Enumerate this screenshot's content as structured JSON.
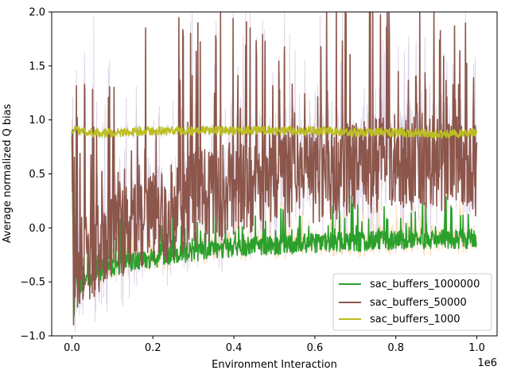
{
  "chart_data": {
    "type": "line",
    "title": "",
    "xlabel": "Environment Interaction",
    "ylabel": "Average normalized Q bias",
    "x_multiplier_label": "1e6",
    "xlim": [
      -50000,
      1050000
    ],
    "ylim": [
      -1.0,
      2.0
    ],
    "xticks": [
      0,
      200000,
      400000,
      600000,
      800000,
      1000000
    ],
    "xtick_labels": [
      "0.0",
      "0.2",
      "0.4",
      "0.6",
      "0.8",
      "1.0"
    ],
    "yticks": [
      -1.0,
      -0.5,
      0.0,
      0.5,
      1.0,
      1.5,
      2.0
    ],
    "ytick_labels": [
      "−1.0",
      "−0.5",
      "0.0",
      "0.5",
      "1.0",
      "1.5",
      "2.0"
    ],
    "grid": false,
    "legend_position": "lower-right",
    "series": [
      {
        "name": "sac_buffers_1000000",
        "color": "#2ca02c",
        "band_color": "#ffbb78",
        "x": [
          0,
          5000,
          10000,
          20000,
          40000,
          60000,
          80000,
          100000,
          120000,
          140000,
          160000,
          180000,
          200000,
          250000,
          300000,
          350000,
          400000,
          450000,
          500000,
          550000,
          600000,
          650000,
          700000,
          750000,
          800000,
          850000,
          900000,
          950000,
          1000000
        ],
        "y": [
          0.9,
          -0.75,
          -0.45,
          -0.52,
          -0.48,
          -0.42,
          -0.38,
          -0.36,
          -0.34,
          -0.32,
          -0.3,
          -0.29,
          -0.28,
          -0.25,
          -0.22,
          -0.2,
          -0.18,
          -0.17,
          -0.16,
          -0.15,
          -0.14,
          -0.13,
          -0.13,
          -0.12,
          -0.12,
          -0.11,
          -0.11,
          -0.11,
          -0.1
        ],
        "noise": 0.09
      },
      {
        "name": "sac_buffers_50000",
        "color": "#8c564b",
        "band_color": "#c5b0d5",
        "x": [
          0,
          5000,
          10000,
          20000,
          40000,
          60000,
          80000,
          100000,
          120000,
          140000,
          160000,
          180000,
          200000,
          250000,
          300000,
          350000,
          400000,
          450000,
          500000,
          550000,
          600000,
          650000,
          700000,
          750000,
          800000,
          850000,
          900000,
          950000,
          1000000
        ],
        "y": [
          0.85,
          -0.82,
          -0.35,
          -0.3,
          -0.25,
          -0.2,
          -0.12,
          -0.05,
          -0.02,
          0.0,
          0.02,
          0.05,
          0.08,
          0.15,
          0.25,
          0.3,
          0.35,
          0.4,
          0.42,
          0.45,
          0.5,
          0.52,
          0.55,
          0.58,
          0.6,
          0.62,
          0.6,
          0.58,
          0.55
        ],
        "noise": 0.45
      },
      {
        "name": "sac_buffers_1000",
        "color": "#bcbd22",
        "band_color": "#c7c7c7",
        "x": [
          0,
          5000,
          10000,
          50000,
          100000,
          150000,
          200000,
          250000,
          300000,
          350000,
          400000,
          450000,
          500000,
          550000,
          600000,
          650000,
          700000,
          750000,
          800000,
          850000,
          900000,
          950000,
          1000000
        ],
        "y": [
          0.88,
          0.9,
          0.9,
          0.88,
          0.88,
          0.89,
          0.9,
          0.9,
          0.9,
          0.9,
          0.9,
          0.9,
          0.9,
          0.9,
          0.9,
          0.9,
          0.88,
          0.89,
          0.88,
          0.88,
          0.87,
          0.87,
          0.88
        ],
        "noise": 0.04
      }
    ]
  }
}
